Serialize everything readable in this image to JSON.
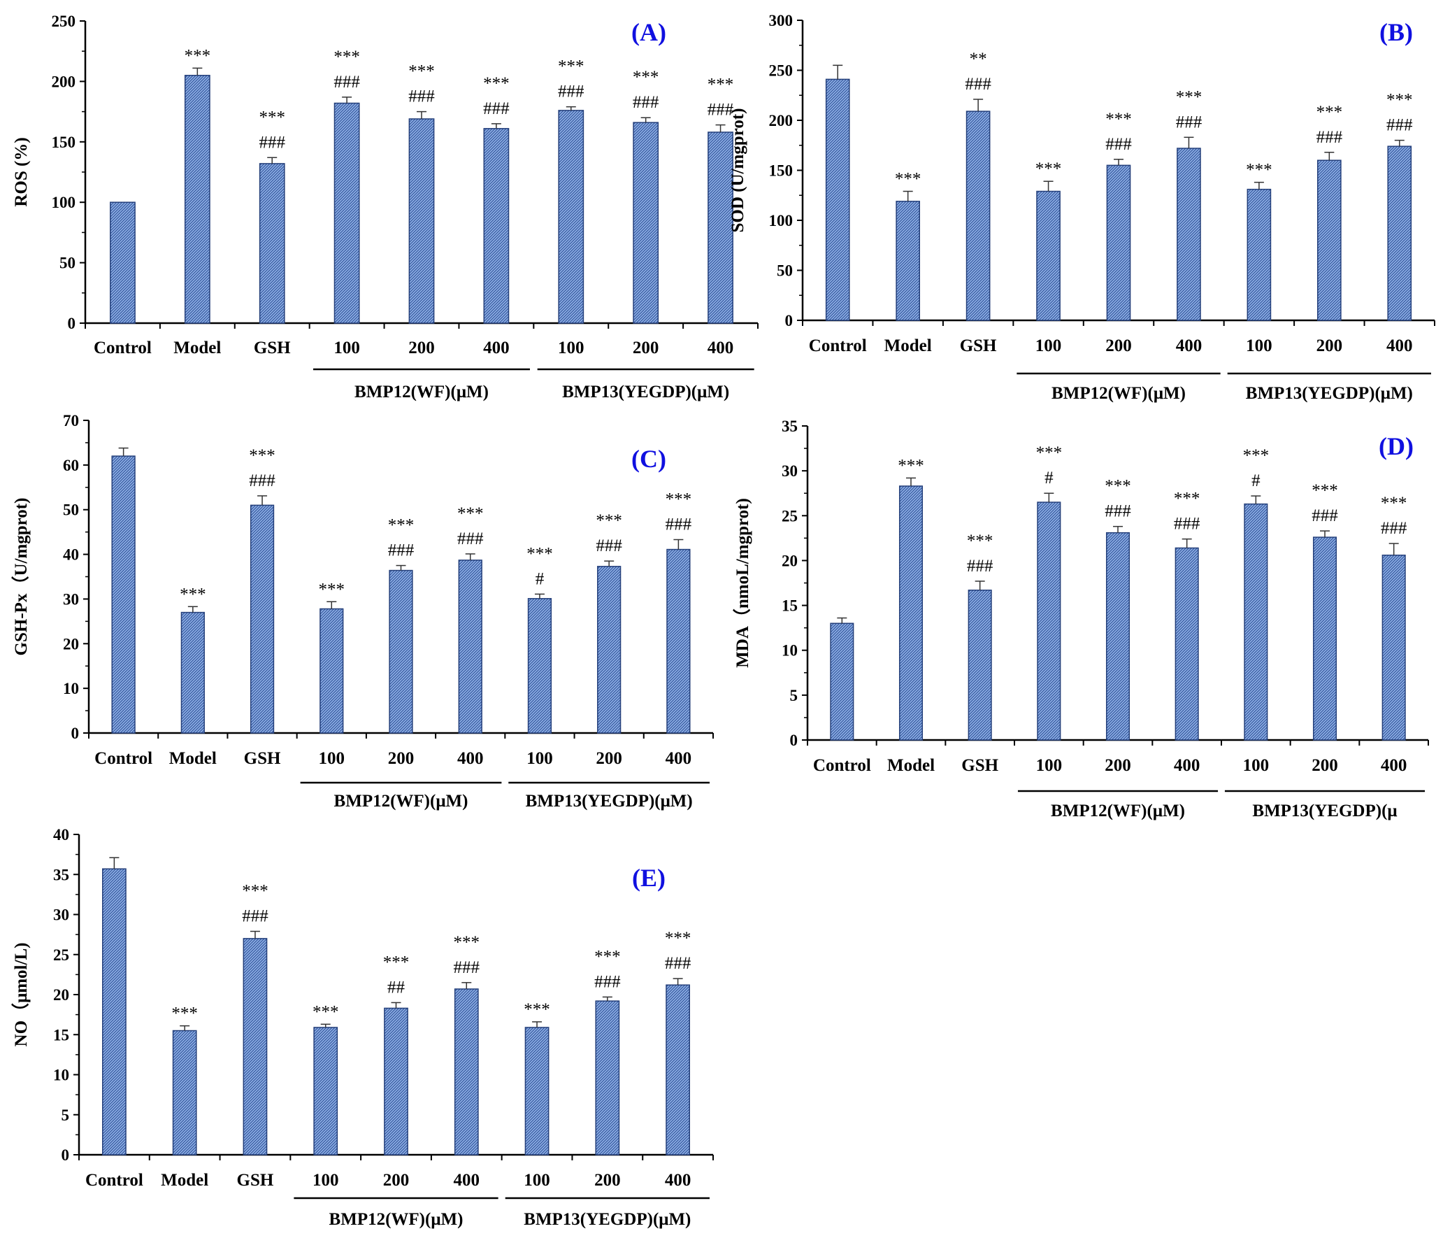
{
  "colors": {
    "bar_fill": "#6b8fd0",
    "bar_stroke": "#243f7a",
    "panel_tag": "#1010e0",
    "axis": "#000000"
  },
  "chart_data": [
    {
      "type": "bar",
      "panel_label": "(A)",
      "ylabel": "ROS (%)",
      "ylim": [
        0,
        250
      ],
      "yticks": [
        0,
        50,
        100,
        150,
        200,
        250
      ],
      "categories": [
        "Control",
        "Model",
        "GSH",
        "100",
        "200",
        "400",
        "100",
        "200",
        "400"
      ],
      "groups": [
        {
          "label": "BMP12(WF)(μM)",
          "members": [
            3,
            4,
            5
          ]
        },
        {
          "label": "BMP13(YEGDP)(μM)",
          "members": [
            6,
            7,
            8
          ]
        }
      ],
      "values": [
        100,
        205,
        132,
        182,
        169,
        161,
        176,
        166,
        158
      ],
      "errors": [
        0,
        6,
        5,
        5,
        6,
        4,
        3,
        4,
        6
      ],
      "sig_top": [
        "",
        "***",
        "***",
        "***",
        "***",
        "***",
        "***",
        "***",
        "***"
      ],
      "sig_bottom": [
        "",
        "",
        "###",
        "###",
        "###",
        "###",
        "###",
        "###",
        "###"
      ]
    },
    {
      "type": "bar",
      "panel_label": "(B)",
      "ylabel": "SOD (U/mgprot)",
      "ylim": [
        0,
        300
      ],
      "yticks": [
        0,
        50,
        100,
        150,
        200,
        250,
        300
      ],
      "categories": [
        "Control",
        "Model",
        "GSH",
        "100",
        "200",
        "400",
        "100",
        "200",
        "400"
      ],
      "groups": [
        {
          "label": "BMP12(WF)(μM)",
          "members": [
            3,
            4,
            5
          ]
        },
        {
          "label": "BMP13(YEGDP)(μM)",
          "members": [
            6,
            7,
            8
          ]
        }
      ],
      "values": [
        241,
        119,
        209,
        129,
        155,
        172,
        131,
        160,
        174
      ],
      "errors": [
        14,
        10,
        12,
        10,
        6,
        11,
        7,
        8,
        6
      ],
      "sig_top": [
        "",
        "***",
        "**",
        "***",
        "***",
        "***",
        "***",
        "***",
        "***"
      ],
      "sig_bottom": [
        "",
        "",
        "###",
        "",
        "###",
        "###",
        "",
        "###",
        "###"
      ]
    },
    {
      "type": "bar",
      "panel_label": "(C)",
      "ylabel": "GSH-Px（U/mgprot)",
      "ylim": [
        0,
        70
      ],
      "yticks": [
        0,
        10,
        20,
        30,
        40,
        50,
        60,
        70
      ],
      "categories": [
        "Control",
        "Model",
        "GSH",
        "100",
        "200",
        "400",
        "100",
        "200",
        "400"
      ],
      "groups": [
        {
          "label": "BMP12(WF)(μM)",
          "members": [
            3,
            4,
            5
          ]
        },
        {
          "label": "BMP13(YEGDP)(μM)",
          "members": [
            6,
            7,
            8
          ]
        }
      ],
      "values": [
        62,
        27,
        51,
        27.8,
        36.4,
        38.7,
        30.1,
        37.3,
        41.1
      ],
      "errors": [
        1.8,
        1.3,
        2.1,
        1.6,
        1.1,
        1.4,
        1.0,
        1.2,
        2.2
      ],
      "sig_top": [
        "",
        "***",
        "***",
        "***",
        "***",
        "***",
        "***",
        "***",
        "***"
      ],
      "sig_bottom": [
        "",
        "",
        "###",
        "",
        "###",
        "###",
        "#",
        "###",
        "###"
      ]
    },
    {
      "type": "bar",
      "panel_label": "(D)",
      "ylabel": "MDA（nmoL/mgprot)",
      "ylim": [
        0,
        35
      ],
      "yticks": [
        0,
        5,
        10,
        15,
        20,
        25,
        30,
        35
      ],
      "categories": [
        "Control",
        "Model",
        "GSH",
        "100",
        "200",
        "400",
        "100",
        "200",
        "400"
      ],
      "groups": [
        {
          "label": "BMP12(WF)(μM)",
          "members": [
            3,
            4,
            5
          ]
        },
        {
          "label": "BMP13(YEGDP)(μ",
          "members": [
            6,
            7,
            8
          ]
        }
      ],
      "values": [
        13,
        28.3,
        16.7,
        26.5,
        23.1,
        21.4,
        26.3,
        22.6,
        20.6
      ],
      "errors": [
        0.6,
        0.9,
        1.0,
        1.0,
        0.7,
        1.0,
        0.9,
        0.7,
        1.3
      ],
      "sig_top": [
        "",
        "***",
        "***",
        "***",
        "***",
        "***",
        "***",
        "***",
        "***"
      ],
      "sig_bottom": [
        "",
        "",
        "###",
        "#",
        "###",
        "###",
        "#",
        "###",
        "###"
      ]
    },
    {
      "type": "bar",
      "panel_label": "(E)",
      "ylabel": "NO（μmol/L)",
      "ylim": [
        0,
        40
      ],
      "yticks": [
        0,
        5,
        10,
        15,
        20,
        25,
        30,
        35,
        40
      ],
      "categories": [
        "Control",
        "Model",
        "GSH",
        "100",
        "200",
        "400",
        "100",
        "200",
        "400"
      ],
      "groups": [
        {
          "label": "BMP12(WF)(μM)",
          "members": [
            3,
            4,
            5
          ]
        },
        {
          "label": "BMP13(YEGDP)(μM)",
          "members": [
            6,
            7,
            8
          ]
        }
      ],
      "values": [
        35.7,
        15.5,
        27,
        15.9,
        18.3,
        20.7,
        15.9,
        19.2,
        21.2
      ],
      "errors": [
        1.4,
        0.6,
        0.9,
        0.4,
        0.7,
        0.8,
        0.7,
        0.5,
        0.8
      ],
      "sig_top": [
        "",
        "***",
        "***",
        "***",
        "***",
        "***",
        "***",
        "***",
        "***"
      ],
      "sig_bottom": [
        "",
        "",
        "###",
        "",
        "##",
        "###",
        "",
        "###",
        "###"
      ]
    }
  ]
}
